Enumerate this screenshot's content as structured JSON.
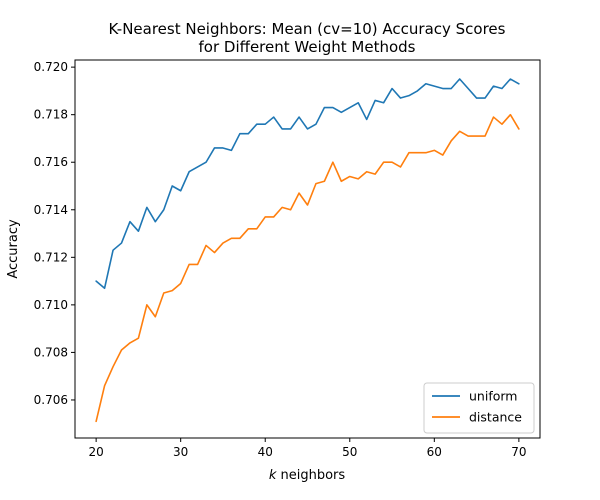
{
  "chart_data": {
    "type": "line",
    "title_line1": "K-Nearest Neighbors: Mean (cv=10) Accuracy Scores",
    "title_line2": "for Different Weight Methods",
    "xlabel_italic": "k",
    "xlabel_rest": " neighbors",
    "ylabel": "Accuracy",
    "xlim": [
      17.5,
      72.5
    ],
    "ylim": [
      0.7044,
      0.7203
    ],
    "xticks": [
      20,
      30,
      40,
      50,
      60,
      70
    ],
    "yticks": [
      0.706,
      0.708,
      0.71,
      0.712,
      0.714,
      0.716,
      0.718,
      0.72
    ],
    "grid": false,
    "legend_position": "lower-right",
    "x": [
      20,
      21,
      22,
      23,
      24,
      25,
      26,
      27,
      28,
      29,
      30,
      31,
      32,
      33,
      34,
      35,
      36,
      37,
      38,
      39,
      40,
      41,
      42,
      43,
      44,
      45,
      46,
      47,
      48,
      49,
      50,
      51,
      52,
      53,
      54,
      55,
      56,
      57,
      58,
      59,
      60,
      61,
      62,
      63,
      64,
      65,
      66,
      67,
      68,
      69,
      70
    ],
    "series": [
      {
        "name": "uniform",
        "color": "#1f77b4",
        "values": [
          0.711,
          0.7107,
          0.7123,
          0.7126,
          0.7135,
          0.7131,
          0.7141,
          0.7135,
          0.714,
          0.715,
          0.7148,
          0.7156,
          0.7158,
          0.716,
          0.7166,
          0.7166,
          0.7165,
          0.7172,
          0.7172,
          0.7176,
          0.7176,
          0.7179,
          0.7174,
          0.7174,
          0.7179,
          0.7174,
          0.7176,
          0.7183,
          0.7183,
          0.7181,
          0.7183,
          0.7185,
          0.7178,
          0.7186,
          0.7185,
          0.7191,
          0.7187,
          0.7188,
          0.719,
          0.7193,
          0.7192,
          0.7191,
          0.7191,
          0.7195,
          0.7191,
          0.7187,
          0.7187,
          0.7192,
          0.7191,
          0.7195,
          0.7193
        ]
      },
      {
        "name": "distance",
        "color": "#ff7f0e",
        "values": [
          0.7051,
          0.7066,
          0.7074,
          0.7081,
          0.7084,
          0.7086,
          0.71,
          0.7095,
          0.7105,
          0.7106,
          0.7109,
          0.7117,
          0.7117,
          0.7125,
          0.7122,
          0.7126,
          0.7128,
          0.7128,
          0.7132,
          0.7132,
          0.7137,
          0.7137,
          0.7141,
          0.714,
          0.7147,
          0.7142,
          0.7151,
          0.7152,
          0.716,
          0.7152,
          0.7154,
          0.7153,
          0.7156,
          0.7155,
          0.716,
          0.716,
          0.7158,
          0.7164,
          0.7164,
          0.7164,
          0.7165,
          0.7163,
          0.7169,
          0.7173,
          0.7171,
          0.7171,
          0.7171,
          0.7179,
          0.7176,
          0.718,
          0.7174
        ]
      }
    ]
  }
}
